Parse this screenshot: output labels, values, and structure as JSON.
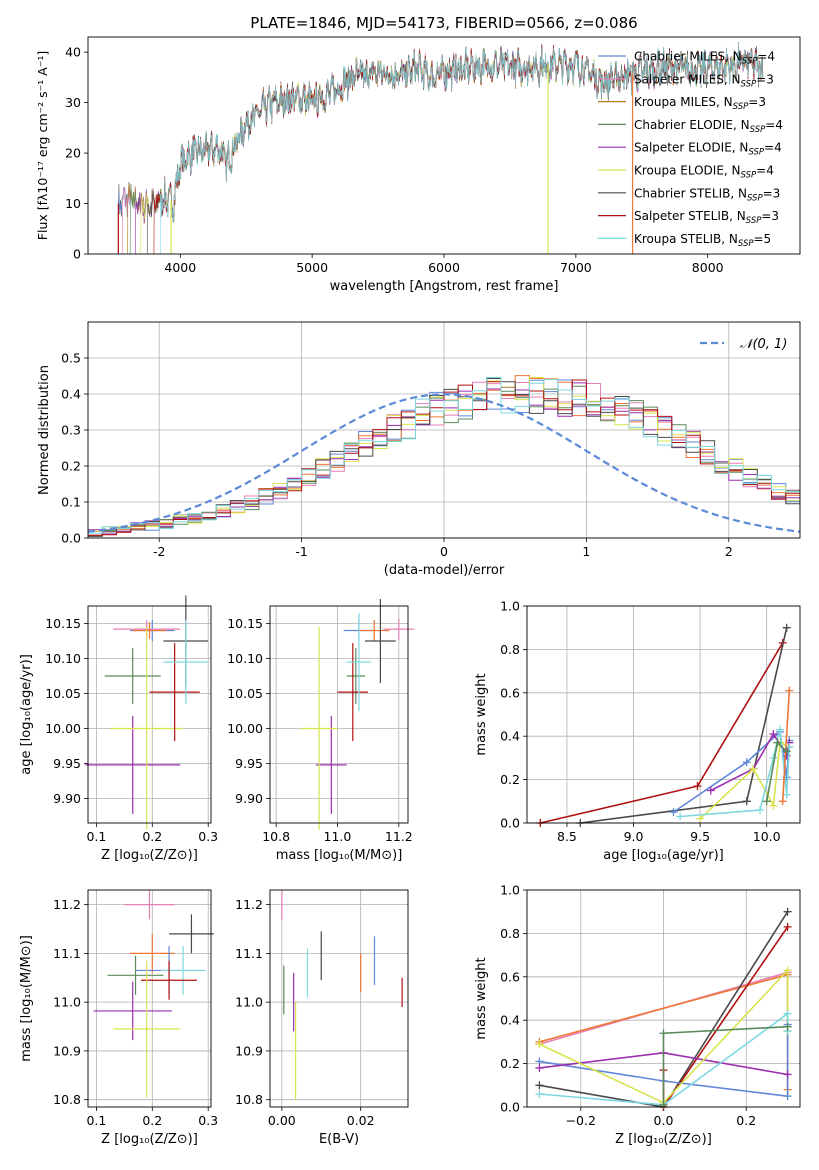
{
  "figure_title": "PLATE=1846, MJD=54173, FIBERID=0566, z=0.086",
  "colors": {
    "Chabrier MILES": "#5f87d8",
    "Salpeter MILES": "#e87fb4",
    "Kroupa MILES": "#b87a17",
    "Chabrier ELODIE": "#5a8a5a",
    "Salpeter ELODIE": "#9a2fb0",
    "Kroupa ELODIE": "#d8e44e",
    "Chabrier STELIB": "#4a4a4a",
    "Salpeter STELIB": "#b01010",
    "Kroupa STELIB": "#7dd8e0",
    "orange": "#ee7733",
    "gauss": "#5a8ad8",
    "grid": "#b0b0b0"
  },
  "chart_data": [
    {
      "id": "spectrum",
      "type": "line",
      "title": "PLATE=1846, MJD=54173, FIBERID=0566, z=0.086",
      "xlabel": "wavelength [Angstrom, rest frame]",
      "ylabel": "Flux [fλ10⁻¹⁷ erg cm⁻² s⁻¹ A⁻¹]",
      "xlim": [
        3300,
        8700
      ],
      "ylim": [
        0,
        43
      ],
      "xticks": [
        4000,
        5000,
        6000,
        7000,
        8000
      ],
      "yticks": [
        0,
        10,
        20,
        30,
        40
      ],
      "grid": false,
      "legend_position": "top-right",
      "legend": [
        {
          "label": "Chabrier MILES, N",
          "sub": "SSP",
          "tail": "=4"
        },
        {
          "label": "Salpeter MILES, N",
          "sub": "SSP",
          "tail": "=3"
        },
        {
          "label": "Kroupa MILES, N",
          "sub": "SSP",
          "tail": "=3"
        },
        {
          "label": "Chabrier ELODIE, N",
          "sub": "SSP",
          "tail": "=4"
        },
        {
          "label": "Salpeter ELODIE, N",
          "sub": "SSP",
          "tail": "=4"
        },
        {
          "label": "Kroupa ELODIE, N",
          "sub": "SSP",
          "tail": "=4"
        },
        {
          "label": "Chabrier STELIB, N",
          "sub": "SSP",
          "tail": "=3"
        },
        {
          "label": "Salpeter STELIB, N",
          "sub": "SSP",
          "tail": "=3"
        },
        {
          "label": "Kroupa STELIB, N",
          "sub": "SSP",
          "tail": "=5"
        }
      ],
      "continuum": [
        [
          3530,
          10
        ],
        [
          3600,
          11
        ],
        [
          3700,
          10
        ],
        [
          3800,
          9.5
        ],
        [
          3850,
          11
        ],
        [
          3950,
          10.5
        ],
        [
          4000,
          18
        ],
        [
          4100,
          20
        ],
        [
          4300,
          21
        ],
        [
          4350,
          18
        ],
        [
          4500,
          26
        ],
        [
          4700,
          30
        ],
        [
          4900,
          31
        ],
        [
          5000,
          30
        ],
        [
          5200,
          33
        ],
        [
          5300,
          35
        ],
        [
          5500,
          36
        ],
        [
          5700,
          35.5
        ],
        [
          5800,
          37
        ],
        [
          5900,
          35
        ],
        [
          6000,
          36
        ],
        [
          6200,
          37
        ],
        [
          6400,
          37.5
        ],
        [
          6600,
          37
        ],
        [
          6800,
          37.5
        ],
        [
          7000,
          37.5
        ],
        [
          7100,
          36
        ],
        [
          7200,
          34
        ],
        [
          7300,
          35
        ],
        [
          7500,
          36
        ],
        [
          7700,
          37
        ],
        [
          7900,
          36.5
        ],
        [
          8100,
          37
        ],
        [
          8300,
          38
        ],
        [
          8400,
          37
        ]
      ],
      "model_start_x": [
        3530,
        3560,
        3600,
        3620,
        3660,
        3700,
        3750,
        3800,
        3850
      ],
      "dropouts": [
        {
          "series": "Kroupa ELODIE",
          "x": 3930
        },
        {
          "series": "Kroupa ELODIE",
          "x": 6790
        },
        {
          "series": "Salpeter STELIB",
          "x": 3530
        },
        {
          "series": "orange",
          "x": 7430
        }
      ]
    },
    {
      "id": "residual_hist",
      "type": "area",
      "xlabel": "(data-model)/error",
      "ylabel": "Normed distribution",
      "xlim": [
        -2.5,
        2.5
      ],
      "ylim": [
        0,
        0.6
      ],
      "xticks": [
        -2,
        -1,
        0,
        1,
        2
      ],
      "yticks": [
        0.0,
        0.1,
        0.2,
        0.3,
        0.4,
        0.5
      ],
      "grid": true,
      "legend_position": "top-right",
      "legend": [
        {
          "label": "𝒩(0, 1)",
          "style": "dashed"
        }
      ],
      "bin_width": 0.1,
      "bin_start": -2.5,
      "base": [
        0.015,
        0.02,
        0.025,
        0.03,
        0.035,
        0.04,
        0.05,
        0.055,
        0.065,
        0.075,
        0.085,
        0.1,
        0.115,
        0.13,
        0.15,
        0.17,
        0.19,
        0.21,
        0.24,
        0.26,
        0.28,
        0.3,
        0.32,
        0.34,
        0.36,
        0.37,
        0.38,
        0.39,
        0.4,
        0.4,
        0.4,
        0.4,
        0.4,
        0.39,
        0.39,
        0.38,
        0.37,
        0.35,
        0.34,
        0.32,
        0.3,
        0.28,
        0.26,
        0.24,
        0.21,
        0.19,
        0.17,
        0.15,
        0.13,
        0.115,
        0.1,
        0.085,
        0.075,
        0.065,
        0.055,
        0.05,
        0.04,
        0.035,
        0.03,
        0.025,
        0.02,
        0.015
      ],
      "base_note": ""
    },
    {
      "id": "age_vs_Z",
      "type": "scatter",
      "xlabel": "Z [log₁₀(Z/Z⊙)]",
      "ylabel": "age  [log₁₀(age/yr)]",
      "xlim": [
        0.085,
        0.305
      ],
      "ylim": [
        9.865,
        10.175
      ],
      "xticks": [
        "0.1",
        "0.2",
        "0.3"
      ],
      "yticks": [
        "9.90",
        "9.95",
        "10.00",
        "10.05",
        "10.10",
        "10.15"
      ],
      "grid": true,
      "points": [
        {
          "series": "Chabrier MILES",
          "x": 0.2,
          "y": 10.14,
          "xerr": 0.04,
          "yerr": 0.015
        },
        {
          "series": "Salpeter MILES",
          "x": 0.19,
          "y": 10.142,
          "xerr": 0.06,
          "yerr": 0.013
        },
        {
          "series": "orange",
          "x": 0.195,
          "y": 10.14,
          "xerr": 0.03,
          "yerr": 0.012
        },
        {
          "series": "Chabrier ELODIE",
          "x": 0.165,
          "y": 10.075,
          "xerr": 0.05,
          "yerr": 0.04
        },
        {
          "series": "Salpeter ELODIE",
          "x": 0.165,
          "y": 9.948,
          "xerr": 0.085,
          "yerr": 0.07
        },
        {
          "series": "Kroupa ELODIE",
          "x": 0.19,
          "y": 10.0,
          "xerr": 0.065,
          "yerr": 0.145
        },
        {
          "series": "Chabrier STELIB",
          "x": 0.26,
          "y": 10.125,
          "xerr": 0.04,
          "yerr": 0.065
        },
        {
          "series": "Salpeter STELIB",
          "x": 0.24,
          "y": 10.052,
          "xerr": 0.045,
          "yerr": 0.07
        },
        {
          "series": "Kroupa STELIB",
          "x": 0.26,
          "y": 10.095,
          "xerr": 0.04,
          "yerr": 0.06
        }
      ]
    },
    {
      "id": "age_vs_mass",
      "type": "scatter",
      "xlabel": "mass [log₁₀(M/M⊙)]",
      "ylabel": "",
      "xlim": [
        10.78,
        11.23
      ],
      "ylim": [
        9.865,
        10.175
      ],
      "xticks": [
        "10.8",
        "11.0",
        "11.2"
      ],
      "yticks": [
        "9.90",
        "9.95",
        "10.00",
        "10.05",
        "10.10",
        "10.15"
      ],
      "grid": true,
      "points": [
        {
          "series": "Chabrier MILES",
          "x": 11.07,
          "y": 10.14,
          "xerr": 0.05,
          "yerr": 0.015
        },
        {
          "series": "Salpeter MILES",
          "x": 11.2,
          "y": 10.142,
          "xerr": 0.05,
          "yerr": 0.015
        },
        {
          "series": "orange",
          "x": 11.12,
          "y": 10.14,
          "xerr": 0.05,
          "yerr": 0.015
        },
        {
          "series": "Chabrier ELODIE",
          "x": 11.06,
          "y": 10.075,
          "xerr": 0.03,
          "yerr": 0.04
        },
        {
          "series": "Salpeter ELODIE",
          "x": 10.98,
          "y": 9.948,
          "xerr": 0.05,
          "yerr": 0.07
        },
        {
          "series": "Kroupa ELODIE",
          "x": 10.94,
          "y": 10.0,
          "xerr": 0.06,
          "yerr": 0.145
        },
        {
          "series": "Chabrier STELIB",
          "x": 11.14,
          "y": 10.125,
          "xerr": 0.05,
          "yerr": 0.06
        },
        {
          "series": "Salpeter STELIB",
          "x": 11.05,
          "y": 10.052,
          "xerr": 0.05,
          "yerr": 0.07
        },
        {
          "series": "Kroupa STELIB",
          "x": 11.07,
          "y": 10.095,
          "xerr": 0.04,
          "yerr": 0.07
        }
      ]
    },
    {
      "id": "massweight_vs_age",
      "type": "line",
      "xlabel": "age  [log₁₀(age/yr)]",
      "ylabel": "mass weight",
      "xlim": [
        8.2,
        10.25
      ],
      "ylim": [
        0,
        1.0
      ],
      "xticks": [
        "8.5",
        "9.0",
        "9.5",
        "10.0"
      ],
      "yticks": [
        "0.0",
        "0.2",
        "0.4",
        "0.6",
        "0.8",
        "1.0"
      ],
      "grid": true,
      "series": [
        {
          "name": "Salpeter STELIB",
          "points": [
            [
              8.3,
              0.0
            ],
            [
              9.48,
              0.17
            ],
            [
              10.12,
              0.83
            ]
          ]
        },
        {
          "name": "Chabrier STELIB",
          "points": [
            [
              8.6,
              0.0
            ],
            [
              9.85,
              0.1
            ],
            [
              10.15,
              0.9
            ]
          ]
        },
        {
          "name": "Chabrier MILES",
          "points": [
            [
              9.3,
              0.05
            ],
            [
              9.85,
              0.28
            ],
            [
              10.1,
              0.42
            ],
            [
              10.15,
              0.21
            ],
            [
              10.17,
              0.38
            ]
          ]
        },
        {
          "name": "Salpeter ELODIE",
          "points": [
            [
              9.58,
              0.15
            ],
            [
              9.9,
              0.25
            ],
            [
              10.05,
              0.41
            ],
            [
              10.15,
              0.31
            ],
            [
              10.17,
              0.37
            ]
          ]
        },
        {
          "name": "Kroupa ELODIE",
          "points": [
            [
              9.5,
              0.02
            ],
            [
              9.9,
              0.25
            ],
            [
              10.05,
              0.08
            ],
            [
              10.1,
              0.37
            ],
            [
              10.17,
              0.35
            ]
          ]
        },
        {
          "name": "Kroupa STELIB",
          "points": [
            [
              9.35,
              0.03
            ],
            [
              9.95,
              0.06
            ],
            [
              10.05,
              0.3
            ],
            [
              10.1,
              0.43
            ],
            [
              10.15,
              0.13
            ],
            [
              10.17,
              0.35
            ]
          ]
        },
        {
          "name": "orange",
          "points": [
            [
              10.12,
              0.1
            ],
            [
              10.17,
              0.61
            ]
          ]
        },
        {
          "name": "Chabrier ELODIE",
          "points": [
            [
              10.0,
              0.1
            ],
            [
              10.08,
              0.37
            ],
            [
              10.15,
              0.33
            ]
          ]
        }
      ]
    },
    {
      "id": "mass_vs_Z",
      "type": "scatter",
      "xlabel": "Z [log₁₀(Z/Z⊙)]",
      "ylabel": "mass [log₁₀(M/M⊙)]",
      "xlim": [
        0.085,
        0.305
      ],
      "ylim": [
        10.785,
        11.23
      ],
      "xticks": [
        "0.1",
        "0.2",
        "0.3"
      ],
      "yticks": [
        "10.8",
        "10.9",
        "11.0",
        "11.1",
        "11.2"
      ],
      "grid": true,
      "points": [
        {
          "series": "Salpeter MILES",
          "x": 0.195,
          "y": 11.2,
          "xerr": 0.045,
          "yerr": 0.03
        },
        {
          "series": "orange",
          "x": 0.2,
          "y": 11.1,
          "xerr": 0.04,
          "yerr": 0.04
        },
        {
          "series": "Chabrier STELIB",
          "x": 0.27,
          "y": 11.14,
          "xerr": 0.04,
          "yerr": 0.04
        },
        {
          "series": "Chabrier MILES",
          "x": 0.23,
          "y": 11.065,
          "xerr": 0.06,
          "yerr": 0.05
        },
        {
          "series": "Kroupa STELIB",
          "x": 0.255,
          "y": 11.065,
          "xerr": 0.04,
          "yerr": 0.05
        },
        {
          "series": "Chabrier ELODIE",
          "x": 0.17,
          "y": 11.055,
          "xerr": 0.05,
          "yerr": 0.04
        },
        {
          "series": "Salpeter STELIB",
          "x": 0.23,
          "y": 11.045,
          "xerr": 0.05,
          "yerr": 0.04
        },
        {
          "series": "Salpeter ELODIE",
          "x": 0.165,
          "y": 10.982,
          "xerr": 0.07,
          "yerr": 0.06
        },
        {
          "series": "Kroupa ELODIE",
          "x": 0.19,
          "y": 10.945,
          "xerr": 0.06,
          "yerr": 0.14
        }
      ]
    },
    {
      "id": "mass_vs_ebv",
      "type": "scatter",
      "xlabel": "E(B-V)",
      "ylabel": "",
      "xlim": [
        -0.003,
        0.032
      ],
      "ylim": [
        10.785,
        11.23
      ],
      "xticks": [
        "0.00",
        "0.02"
      ],
      "yticks": [
        "10.8",
        "10.9",
        "11.0",
        "11.1",
        "11.2"
      ],
      "grid": true,
      "points": [
        {
          "series": "Salpeter MILES",
          "x": 0.0,
          "y": 11.2,
          "xerr": 0,
          "yerr": 0.03
        },
        {
          "series": "orange",
          "x": 0.02,
          "y": 11.06,
          "xerr": 0,
          "yerr": 0.04
        },
        {
          "series": "Chabrier STELIB",
          "x": 0.01,
          "y": 11.095,
          "xerr": 0,
          "yerr": 0.05
        },
        {
          "series": "Chabrier MILES",
          "x": 0.0235,
          "y": 11.085,
          "xerr": 0,
          "yerr": 0.05
        },
        {
          "series": "Kroupa STELIB",
          "x": 0.0065,
          "y": 11.06,
          "xerr": 0,
          "yerr": 0.05
        },
        {
          "series": "Chabrier ELODIE",
          "x": 0.0005,
          "y": 11.025,
          "xerr": 0,
          "yerr": 0.05
        },
        {
          "series": "Salpeter STELIB",
          "x": 0.0305,
          "y": 11.02,
          "xerr": 0,
          "yerr": 0.03
        },
        {
          "series": "Salpeter ELODIE",
          "x": 0.003,
          "y": 11.0,
          "xerr": 0,
          "yerr": 0.06
        },
        {
          "series": "Kroupa ELODIE",
          "x": 0.0035,
          "y": 10.9,
          "xerr": 0,
          "yerr": 0.1
        }
      ]
    },
    {
      "id": "massweight_vs_Z",
      "type": "line",
      "xlabel": "Z [log₁₀(Z/Z⊙)]",
      "ylabel": "mass weight",
      "xlim": [
        -0.33,
        0.33
      ],
      "ylim": [
        0,
        1.0
      ],
      "xticks": [
        "−0.2",
        "0.0",
        "0.2"
      ],
      "yticks": [
        "0.0",
        "0.2",
        "0.4",
        "0.6",
        "0.8",
        "1.0"
      ],
      "grid": true,
      "series": [
        {
          "name": "Salpeter MILES",
          "points": [
            [
              -0.3,
              0.29
            ],
            [
              0.3,
              0.62
            ]
          ]
        },
        {
          "name": "orange",
          "points": [
            [
              -0.3,
              0.3
            ],
            [
              0.3,
              0.61
            ],
            [
              0.3,
              0.08
            ]
          ]
        },
        {
          "name": "Chabrier STELIB",
          "points": [
            [
              -0.3,
              0.1
            ],
            [
              0.0,
              0.0
            ],
            [
              0.3,
              0.9
            ]
          ]
        },
        {
          "name": "Salpeter STELIB",
          "points": [
            [
              0.0,
              0.17
            ],
            [
              0.0,
              0.0
            ],
            [
              0.3,
              0.83
            ]
          ]
        },
        {
          "name": "Chabrier MILES",
          "points": [
            [
              -0.3,
              0.21
            ],
            [
              0.0,
              0.12
            ],
            [
              0.3,
              0.05
            ],
            [
              0.3,
              0.38
            ]
          ]
        },
        {
          "name": "Salpeter ELODIE",
          "points": [
            [
              -0.3,
              0.18
            ],
            [
              0.0,
              0.25
            ],
            [
              0.3,
              0.15
            ]
          ]
        },
        {
          "name": "Kroupa ELODIE",
          "points": [
            [
              -0.3,
              0.29
            ],
            [
              0.0,
              0.02
            ],
            [
              0.3,
              0.63
            ],
            [
              0.3,
              0.35
            ]
          ]
        },
        {
          "name": "Kroupa STELIB",
          "points": [
            [
              -0.3,
              0.06
            ],
            [
              0.0,
              0.01
            ],
            [
              0.3,
              0.43
            ],
            [
              0.3,
              0.35
            ]
          ]
        },
        {
          "name": "Chabrier ELODIE",
          "points": [
            [
              0.0,
              0.01
            ],
            [
              0.0,
              0.34
            ],
            [
              0.3,
              0.37
            ]
          ]
        }
      ]
    }
  ]
}
